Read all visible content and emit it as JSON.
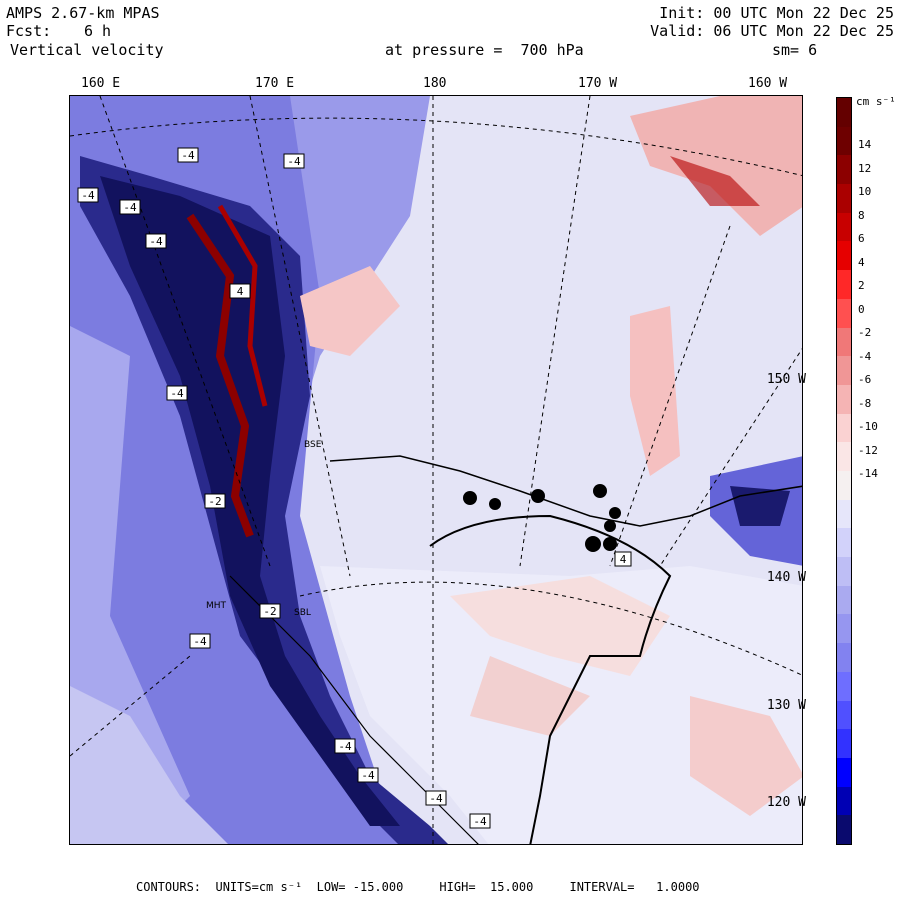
{
  "header": {
    "model": "AMPS 2.67-km MPAS",
    "forecast_label": "Fcst:",
    "forecast_value": "6 h",
    "variable": "Vertical velocity",
    "init": "Init: 00 UTC Mon 22 Dec 25",
    "valid": "Valid: 06 UTC Mon 22 Dec 25",
    "level": "at pressure =  700 hPa",
    "smooth": "sm= 6"
  },
  "lon_labels": [
    "160 E",
    "170 E",
    "180",
    "170 W",
    "160 W"
  ],
  "lat_labels": [
    "150 W",
    "140 W",
    "130 W",
    "120 W"
  ],
  "colorbar": {
    "unit_label": "cm s⁻¹",
    "ticks": [
      "14",
      "12",
      "10",
      "8",
      "6",
      "4",
      "2",
      "0",
      "-2",
      "-4",
      "-6",
      "-8",
      "-10",
      "-12",
      "-14"
    ],
    "colors": [
      "#0a0a6e",
      "#0000b4",
      "#0000ff",
      "#3232ff",
      "#5050ff",
      "#6e6eff",
      "#8282f0",
      "#9696f0",
      "#aaaaf0",
      "#bebef5",
      "#d2d2fa",
      "#e6e6fa",
      "#f5f0f0",
      "#fae6e6",
      "#fad2d2",
      "#f5b4b4",
      "#f09696",
      "#f07878",
      "#ff5050",
      "#ff2828",
      "#e60000",
      "#c80000",
      "#aa0000",
      "#8c0000",
      "#6e0000",
      "#640000"
    ]
  },
  "map_labels": {
    "contour_boxes": [
      "-4",
      "-4",
      "-4",
      "-4",
      "4",
      "-4",
      "-2",
      "-4",
      "-2",
      "-4",
      "-4",
      "-4",
      "-4",
      "4",
      "-4"
    ],
    "places": [
      "BSE",
      "SBL",
      "MHT"
    ]
  },
  "footer": {
    "contours": "CONTOURS:  UNITS=cm s⁻¹  LOW= -15.000     HIGH=  15.000     INTERVAL=   1.0000"
  },
  "colors": {
    "ocean": "#e8e8f8",
    "mountain_dark": "#1a1a6e",
    "positive": "#f5c8c8",
    "coast": "#000000"
  }
}
